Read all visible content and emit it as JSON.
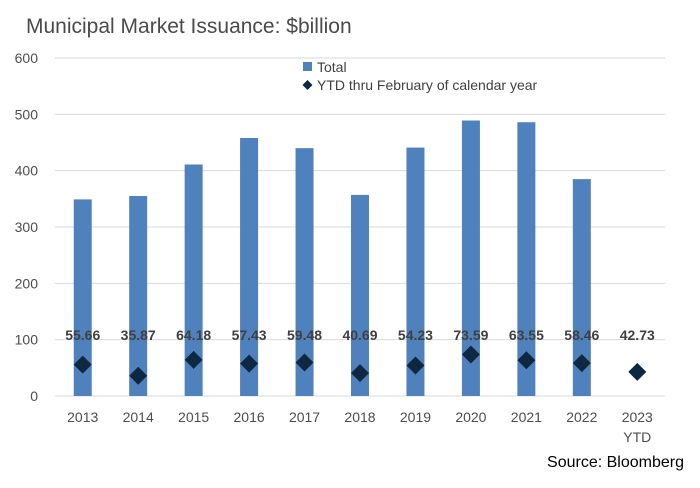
{
  "title": "Municipal Market Issuance: $billion",
  "source": "Source: Bloomberg",
  "colors": {
    "bar": "#4f81bd",
    "marker": "#0e2841",
    "grid": "#d9d9d9",
    "axis_text": "#4d4d4d",
    "label_text": "#404040"
  },
  "chart_data": {
    "type": "bar",
    "categories": [
      "2013",
      "2014",
      "2015",
      "2016",
      "2017",
      "2018",
      "2019",
      "2020",
      "2021",
      "2022",
      "2023"
    ],
    "category_sublabels": [
      "",
      "",
      "",
      "",
      "",
      "",
      "",
      "",
      "",
      "",
      "YTD"
    ],
    "series": [
      {
        "name": "Total",
        "type": "bar",
        "values": [
          349,
          355,
          411,
          458,
          440,
          357,
          441,
          489,
          486,
          385,
          null
        ]
      },
      {
        "name": "YTD thru February of calendar year",
        "type": "marker",
        "marker": "diamond",
        "values": [
          55.66,
          35.87,
          64.18,
          57.43,
          59.48,
          40.69,
          54.23,
          73.59,
          63.55,
          58.46,
          42.73
        ]
      }
    ],
    "data_labels": [
      "55.66",
      "35.87",
      "64.18",
      "57.43",
      "59.48",
      "40.69",
      "54.23",
      "73.59",
      "63.55",
      "58.46",
      "42.73"
    ],
    "yticks": [
      0,
      100,
      200,
      300,
      400,
      500,
      600
    ],
    "ylim": [
      0,
      600
    ],
    "grid": true,
    "legend_position": "top-center"
  }
}
